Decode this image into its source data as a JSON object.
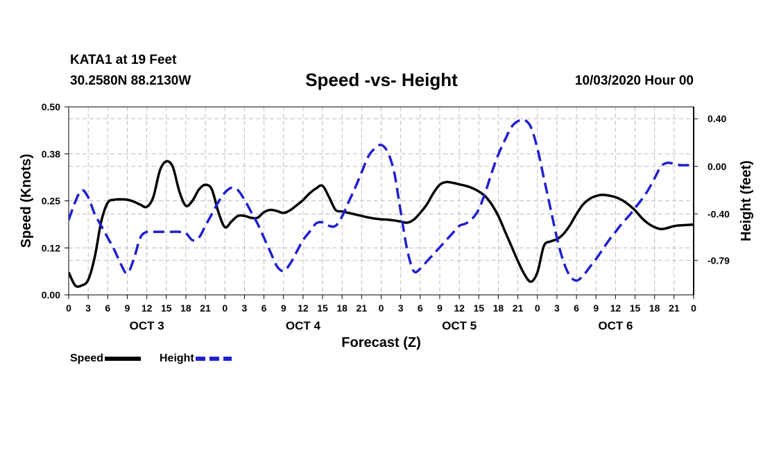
{
  "header": {
    "station": "KATA1 at 19 Feet",
    "coords": "30.2580N 88.2130W",
    "title": "Speed -vs- Height",
    "date": "10/03/2020 Hour 00"
  },
  "legend": {
    "speed": "Speed",
    "height": "Height"
  },
  "colors": {
    "speed": "#000000",
    "height": "#1f1fd0",
    "grid": "#bbbbbb"
  },
  "chart_data": {
    "type": "line",
    "title": "Speed -vs- Height",
    "xlabel": "Forecast (Z)",
    "ylabel_left": "Speed (Knots)",
    "ylabel_right": "Height (feet)",
    "ylim_left": [
      0,
      0.5
    ],
    "ylim_right": [
      -1.08,
      0.5
    ],
    "yticks_left": [
      "0.00",
      "0.12",
      "0.25",
      "0.38",
      "0.50"
    ],
    "yticks_left_values": [
      0,
      0.125,
      0.25,
      0.375,
      0.5
    ],
    "yticks_right": [
      "-0.79",
      "-0.40",
      "0.00",
      "0.40"
    ],
    "yticks_right_values": [
      -0.79,
      -0.4,
      0.0,
      0.4
    ],
    "x_range_hours": [
      0,
      96
    ],
    "xtick_labels": [
      "0",
      "3",
      "6",
      "9",
      "12",
      "15",
      "18",
      "21",
      "0",
      "3",
      "6",
      "9",
      "12",
      "15",
      "18",
      "21",
      "0",
      "3",
      "6",
      "9",
      "12",
      "15",
      "18",
      "21",
      "0",
      "3",
      "6",
      "9",
      "12",
      "15",
      "18",
      "21",
      "0"
    ],
    "day_labels": [
      "OCT 3",
      "OCT 4",
      "OCT 5",
      "OCT 6"
    ],
    "series": [
      {
        "name": "Speed",
        "axis": "left",
        "style": "solid",
        "x": [
          0,
          1,
          2,
          3,
          4,
          5,
          6,
          7,
          8,
          9,
          10,
          11,
          12,
          13,
          14,
          15,
          16,
          17,
          18,
          19,
          20,
          21,
          22,
          23,
          24,
          25,
          26,
          27,
          28,
          29,
          30,
          31,
          32,
          33,
          34,
          35,
          36,
          37,
          38,
          39,
          40,
          41,
          42,
          43,
          44,
          45,
          46,
          47,
          48,
          49,
          50,
          51,
          52,
          53,
          54,
          55,
          56,
          57,
          58,
          59,
          60,
          61,
          62,
          63,
          64,
          65,
          66,
          67,
          68,
          69,
          70,
          71,
          72,
          73,
          74,
          75,
          76,
          77,
          78,
          79,
          80,
          81,
          82,
          83,
          84,
          85,
          86,
          87,
          88,
          89,
          90,
          91,
          92,
          93,
          94,
          95,
          96
        ],
        "values": [
          0.06,
          0.025,
          0.025,
          0.04,
          0.1,
          0.195,
          0.245,
          0.253,
          0.254,
          0.253,
          0.248,
          0.24,
          0.234,
          0.26,
          0.33,
          0.355,
          0.34,
          0.275,
          0.237,
          0.25,
          0.28,
          0.293,
          0.28,
          0.22,
          0.18,
          0.195,
          0.21,
          0.21,
          0.205,
          0.205,
          0.22,
          0.226,
          0.223,
          0.218,
          0.225,
          0.238,
          0.252,
          0.27,
          0.283,
          0.29,
          0.26,
          0.226,
          0.222,
          0.218,
          0.214,
          0.21,
          0.206,
          0.203,
          0.201,
          0.2,
          0.198,
          0.195,
          0.192,
          0.2,
          0.218,
          0.24,
          0.27,
          0.293,
          0.3,
          0.298,
          0.294,
          0.29,
          0.284,
          0.275,
          0.262,
          0.24,
          0.21,
          0.17,
          0.13,
          0.09,
          0.055,
          0.035,
          0.06,
          0.13,
          0.142,
          0.148,
          0.162,
          0.185,
          0.215,
          0.24,
          0.255,
          0.263,
          0.266,
          0.264,
          0.26,
          0.252,
          0.24,
          0.225,
          0.205,
          0.19,
          0.18,
          0.175,
          0.178,
          0.183,
          0.185,
          0.186,
          0.187
        ]
      },
      {
        "name": "Height",
        "axis": "right",
        "style": "dashed",
        "x": [
          0,
          1,
          2,
          3,
          4,
          5,
          6,
          7,
          8,
          9,
          10,
          11,
          12,
          13,
          14,
          15,
          16,
          17,
          18,
          19,
          20,
          21,
          22,
          23,
          24,
          25,
          26,
          27,
          28,
          29,
          30,
          31,
          32,
          33,
          34,
          35,
          36,
          37,
          38,
          39,
          40,
          41,
          42,
          43,
          44,
          45,
          46,
          47,
          48,
          49,
          50,
          51,
          52,
          53,
          54,
          55,
          56,
          57,
          58,
          59,
          60,
          61,
          62,
          63,
          64,
          65,
          66,
          67,
          68,
          69,
          70,
          71,
          72,
          73,
          74,
          75,
          76,
          77,
          78,
          79,
          80,
          81,
          82,
          83,
          84,
          85,
          86,
          87,
          88,
          89,
          90,
          91,
          92,
          93,
          94,
          95,
          96
        ],
        "values": [
          -0.45,
          -0.3,
          -0.2,
          -0.26,
          -0.4,
          -0.5,
          -0.6,
          -0.7,
          -0.82,
          -0.9,
          -0.78,
          -0.6,
          -0.55,
          -0.55,
          -0.55,
          -0.55,
          -0.55,
          -0.55,
          -0.56,
          -0.62,
          -0.6,
          -0.5,
          -0.4,
          -0.3,
          -0.22,
          -0.18,
          -0.2,
          -0.28,
          -0.38,
          -0.48,
          -0.6,
          -0.72,
          -0.84,
          -0.88,
          -0.82,
          -0.72,
          -0.62,
          -0.55,
          -0.48,
          -0.47,
          -0.5,
          -0.5,
          -0.42,
          -0.3,
          -0.18,
          -0.05,
          0.08,
          0.15,
          0.18,
          0.12,
          -0.05,
          -0.38,
          -0.7,
          -0.88,
          -0.86,
          -0.8,
          -0.74,
          -0.68,
          -0.62,
          -0.56,
          -0.5,
          -0.48,
          -0.44,
          -0.36,
          -0.22,
          -0.05,
          0.1,
          0.22,
          0.33,
          0.38,
          0.39,
          0.33,
          0.15,
          -0.1,
          -0.35,
          -0.6,
          -0.8,
          -0.92,
          -0.96,
          -0.92,
          -0.85,
          -0.78,
          -0.7,
          -0.62,
          -0.55,
          -0.48,
          -0.42,
          -0.35,
          -0.28,
          -0.2,
          -0.1,
          0.0,
          0.03,
          0.02,
          0.01,
          0.01,
          0.01
        ]
      }
    ]
  }
}
